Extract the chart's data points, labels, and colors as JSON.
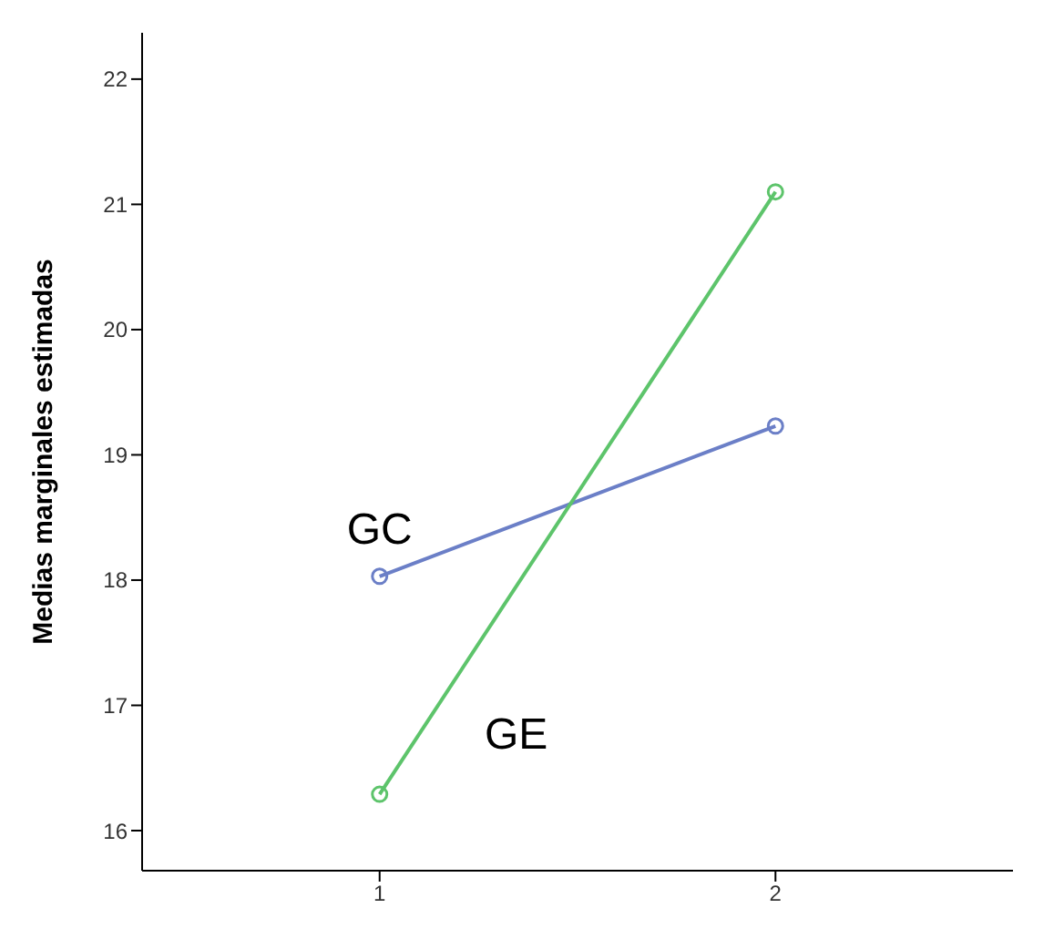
{
  "chart_data": {
    "type": "line",
    "ylabel": "Medias marginales estimadas",
    "categories": [
      "1",
      "2"
    ],
    "ylim": [
      15.68,
      22.37
    ],
    "yticks": [
      16,
      17,
      18,
      19,
      20,
      21,
      22
    ],
    "grid": false,
    "legend": false,
    "marker": "circle",
    "line_style": "solid",
    "series": [
      {
        "name": "GC",
        "color": "#6b7fc7",
        "values": [
          18.03,
          19.23
        ]
      },
      {
        "name": "GE",
        "color": "#5dc46b",
        "values": [
          16.29,
          21.1
        ]
      }
    ]
  }
}
